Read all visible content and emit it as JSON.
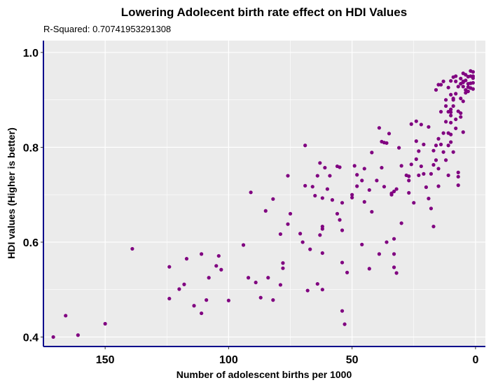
{
  "chart_data": {
    "type": "scatter",
    "title": "Lowering Adolecent birth rate effect on HDI Values",
    "subtitle": "R-Squared:  0.70741953291308",
    "xlabel": "Number of adolescent births per 1000",
    "ylabel": "HDI values (Higher is better)",
    "x_reversed": true,
    "xlim": [
      175,
      -4
    ],
    "ylim": [
      0.38,
      1.025
    ],
    "x_ticks": [
      150,
      100,
      50,
      0
    ],
    "y_ticks": [
      0.4,
      0.6,
      0.8,
      1.0
    ],
    "x_tick_labels": [
      "150",
      "100",
      "50",
      "0"
    ],
    "y_tick_labels": [
      "0.4",
      "0.6",
      "0.8",
      "1.0"
    ],
    "grid": true,
    "panel_color": "#ebebeb",
    "point_color": "#800080",
    "axis_line_color": "#00008b",
    "series": [
      {
        "points": [
          [
            171,
            0.4
          ],
          [
            166,
            0.445
          ],
          [
            161,
            0.404
          ],
          [
            150,
            0.428
          ],
          [
            139,
            0.586
          ],
          [
            124,
            0.548
          ],
          [
            124,
            0.481
          ],
          [
            120,
            0.501
          ],
          [
            118,
            0.511
          ],
          [
            117,
            0.565
          ],
          [
            114,
            0.466
          ],
          [
            111,
            0.575
          ],
          [
            111,
            0.45
          ],
          [
            109,
            0.478
          ],
          [
            108,
            0.525
          ],
          [
            105,
            0.55
          ],
          [
            104,
            0.571
          ],
          [
            103,
            0.542
          ],
          [
            100,
            0.477
          ],
          [
            94,
            0.594
          ],
          [
            92,
            0.525
          ],
          [
            91,
            0.705
          ],
          [
            89,
            0.515
          ],
          [
            87,
            0.483
          ],
          [
            85,
            0.666
          ],
          [
            84,
            0.525
          ],
          [
            82,
            0.691
          ],
          [
            82,
            0.478
          ],
          [
            79,
            0.617
          ],
          [
            79,
            0.51
          ],
          [
            78,
            0.545
          ],
          [
            78,
            0.556
          ],
          [
            76,
            0.638
          ],
          [
            76,
            0.74
          ],
          [
            75,
            0.66
          ],
          [
            71,
            0.618
          ],
          [
            70,
            0.6
          ],
          [
            69,
            0.804
          ],
          [
            69,
            0.719
          ],
          [
            68,
            0.498
          ],
          [
            67,
            0.585
          ],
          [
            66,
            0.717
          ],
          [
            65,
            0.698
          ],
          [
            64,
            0.512
          ],
          [
            64,
            0.74
          ],
          [
            63,
            0.767
          ],
          [
            63,
            0.615
          ],
          [
            62,
            0.628
          ],
          [
            62,
            0.633
          ],
          [
            62,
            0.577
          ],
          [
            62,
            0.5
          ],
          [
            62,
            0.693
          ],
          [
            61,
            0.757
          ],
          [
            60,
            0.712
          ],
          [
            59,
            0.74
          ],
          [
            58,
            0.689
          ],
          [
            56,
            0.66
          ],
          [
            56,
            0.76
          ],
          [
            55,
            0.647
          ],
          [
            55,
            0.758
          ],
          [
            54,
            0.625
          ],
          [
            54,
            0.683
          ],
          [
            54,
            0.557
          ],
          [
            54,
            0.455
          ],
          [
            53,
            0.427
          ],
          [
            52,
            0.536
          ],
          [
            50,
            0.694
          ],
          [
            50,
            0.7
          ],
          [
            49,
            0.761
          ],
          [
            48,
            0.742
          ],
          [
            48,
            0.718
          ],
          [
            46,
            0.73
          ],
          [
            46,
            0.595
          ],
          [
            45,
            0.685
          ],
          [
            45,
            0.755
          ],
          [
            43,
            0.544
          ],
          [
            43,
            0.71
          ],
          [
            42,
            0.789
          ],
          [
            42,
            0.664
          ],
          [
            40,
            0.73
          ],
          [
            39,
            0.575
          ],
          [
            39,
            0.841
          ],
          [
            38,
            0.812
          ],
          [
            38,
            0.757
          ],
          [
            37,
            0.81
          ],
          [
            37,
            0.717
          ],
          [
            36,
            0.6
          ],
          [
            36,
            0.809
          ],
          [
            35,
            0.829
          ],
          [
            34,
            0.7
          ],
          [
            34,
            0.703
          ],
          [
            33,
            0.707
          ],
          [
            33,
            0.575
          ],
          [
            33,
            0.607
          ],
          [
            33,
            0.547
          ],
          [
            32,
            0.712
          ],
          [
            32,
            0.535
          ],
          [
            31,
            0.799
          ],
          [
            30,
            0.761
          ],
          [
            30,
            0.64
          ],
          [
            28,
            0.741
          ],
          [
            27,
            0.739
          ],
          [
            27,
            0.704
          ],
          [
            27,
            0.73
          ],
          [
            26,
            0.764
          ],
          [
            26,
            0.849
          ],
          [
            25,
            0.683
          ],
          [
            24,
            0.813
          ],
          [
            24,
            0.775
          ],
          [
            24,
            0.855
          ],
          [
            23,
            0.741
          ],
          [
            23,
            0.792
          ],
          [
            22,
            0.848
          ],
          [
            22,
            0.76
          ],
          [
            21,
            0.806
          ],
          [
            21,
            0.744
          ],
          [
            20,
            0.716
          ],
          [
            19,
            0.692
          ],
          [
            19,
            0.843
          ],
          [
            18,
            0.671
          ],
          [
            18,
            0.744
          ],
          [
            17,
            0.793
          ],
          [
            17,
            0.763
          ],
          [
            17,
            0.633
          ],
          [
            16,
            0.921
          ],
          [
            16,
            0.804
          ],
          [
            16,
            0.773
          ],
          [
            15,
            0.818
          ],
          [
            15,
            0.755
          ],
          [
            15,
            0.718
          ],
          [
            14,
            0.806
          ],
          [
            14,
            0.875
          ],
          [
            13,
            0.83
          ],
          [
            13,
            0.939
          ],
          [
            13,
            0.79
          ],
          [
            12,
            0.854
          ],
          [
            12,
            0.773
          ],
          [
            12,
            0.887
          ],
          [
            11,
            0.875
          ],
          [
            11,
            0.926
          ],
          [
            11,
            0.83
          ],
          [
            11,
            0.804
          ],
          [
            11,
            0.741
          ],
          [
            10,
            0.911
          ],
          [
            10,
            0.94
          ],
          [
            10,
            0.827
          ],
          [
            10,
            0.88
          ],
          [
            10,
            0.874
          ],
          [
            10,
            0.867
          ],
          [
            10,
            0.811
          ],
          [
            9,
            0.79
          ],
          [
            9,
            0.9
          ],
          [
            9,
            0.887
          ],
          [
            9,
            0.903
          ],
          [
            8,
            0.913
          ],
          [
            8,
            0.95
          ],
          [
            8,
            0.939
          ],
          [
            8,
            0.859
          ],
          [
            8,
            0.84
          ],
          [
            7,
            0.928
          ],
          [
            7,
            0.876
          ],
          [
            7,
            0.747
          ],
          [
            7,
            0.72
          ],
          [
            7,
            0.738
          ],
          [
            6,
            0.945
          ],
          [
            6,
            0.903
          ],
          [
            6,
            0.934
          ],
          [
            6,
            0.872
          ],
          [
            6,
            0.864
          ],
          [
            5,
            0.956
          ],
          [
            5,
            0.937
          ],
          [
            5,
            0.897
          ],
          [
            5,
            0.832
          ],
          [
            5,
            0.928
          ],
          [
            5,
            0.939
          ],
          [
            4,
            0.921
          ],
          [
            4,
            0.915
          ],
          [
            4,
            0.941
          ],
          [
            4,
            0.953
          ],
          [
            3,
            0.927
          ],
          [
            3,
            0.934
          ],
          [
            3,
            0.949
          ],
          [
            3,
            0.918
          ],
          [
            2,
            0.961
          ],
          [
            2,
            0.95
          ],
          [
            2,
            0.935
          ],
          [
            2,
            0.925
          ],
          [
            1,
            0.946
          ],
          [
            1,
            0.923
          ],
          [
            1,
            0.936
          ],
          [
            1,
            0.959
          ],
          [
            1,
            0.95
          ],
          [
            12,
            0.9
          ],
          [
            9,
            0.948
          ],
          [
            14,
            0.932
          ],
          [
            10,
            0.852
          ],
          [
            15,
            0.932
          ]
        ]
      }
    ]
  }
}
